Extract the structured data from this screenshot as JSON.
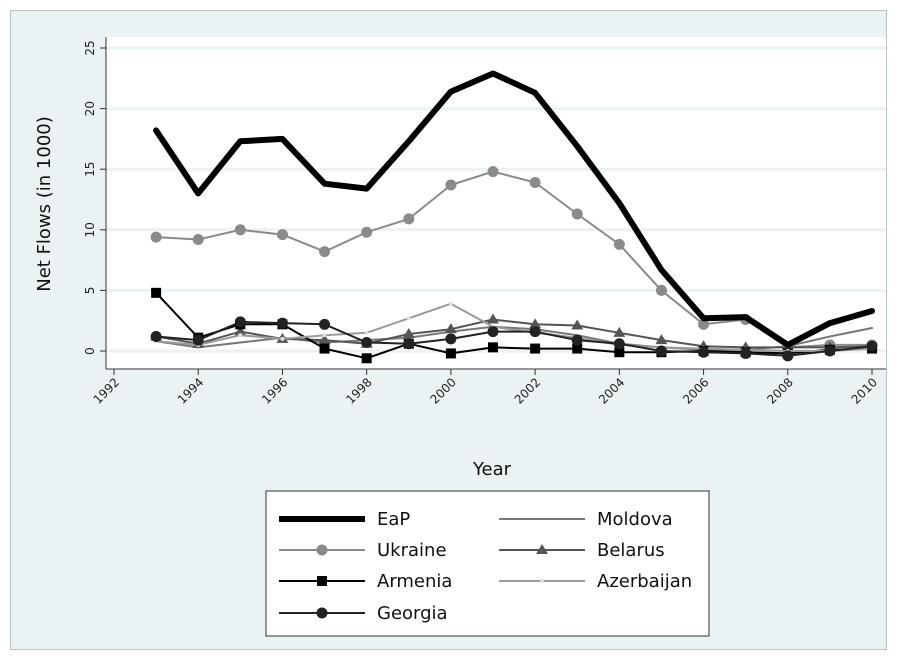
{
  "chart_data": {
    "type": "line",
    "title": "",
    "xlabel": "Year",
    "ylabel": "Net Flows (in 1000)",
    "xlim": [
      1992,
      2010
    ],
    "ylim": [
      0,
      25
    ],
    "x_ticks": [
      1992,
      1994,
      1996,
      1998,
      2000,
      2002,
      2004,
      2006,
      2008,
      2010
    ],
    "y_ticks": [
      0,
      5,
      10,
      15,
      20,
      25
    ],
    "grid": "horizontal",
    "legend_position": "bottom",
    "x": [
      1993,
      1994,
      1995,
      1996,
      1997,
      1998,
      1999,
      2000,
      2001,
      2002,
      2003,
      2004,
      2005,
      2006,
      2007,
      2008,
      2009,
      2010
    ],
    "series": [
      {
        "name": "EaP",
        "color": "#000000",
        "marker": "none",
        "width": 6,
        "values": [
          18.2,
          13.0,
          17.3,
          17.5,
          13.8,
          13.4,
          17.3,
          21.4,
          22.9,
          21.3,
          16.9,
          12.2,
          6.7,
          2.7,
          2.8,
          0.5,
          2.3,
          3.3
        ]
      },
      {
        "name": "Moldova",
        "color": "#777777",
        "marker": "none",
        "width": 2,
        "values": [
          0.8,
          0.3,
          0.7,
          1.1,
          0.7,
          0.9,
          1.1,
          1.6,
          2.0,
          1.8,
          1.3,
          0.6,
          0.3,
          0.1,
          0.1,
          0.4,
          1.2,
          1.9
        ]
      },
      {
        "name": "Ukraine",
        "color": "#8a8a8a",
        "marker": "circle",
        "width": 2,
        "values": [
          9.4,
          9.2,
          10.0,
          9.6,
          8.2,
          9.8,
          10.9,
          13.7,
          14.8,
          13.9,
          11.3,
          8.8,
          5.0,
          2.2,
          2.6,
          0.3,
          0.5,
          0.5
        ]
      },
      {
        "name": "Belarus",
        "color": "#555555",
        "marker": "triangle",
        "width": 2,
        "values": [
          1.2,
          0.6,
          1.6,
          1.0,
          0.9,
          0.6,
          1.4,
          1.8,
          2.6,
          2.2,
          2.1,
          1.5,
          0.9,
          0.4,
          0.3,
          0.3,
          0.3,
          0.4
        ]
      },
      {
        "name": "Armenia",
        "color": "#000000",
        "marker": "square",
        "width": 2,
        "values": [
          4.8,
          1.1,
          2.2,
          2.2,
          0.2,
          -0.6,
          0.6,
          -0.2,
          0.3,
          0.2,
          0.2,
          -0.1,
          -0.1,
          0.0,
          -0.1,
          -0.2,
          0.1,
          0.2
        ]
      },
      {
        "name": "Azerbaijan",
        "color": "#999999",
        "marker": "dot",
        "width": 2,
        "values": [
          0.8,
          0.5,
          1.3,
          1.0,
          1.3,
          1.5,
          2.7,
          3.9,
          2.0,
          1.5,
          1.1,
          0.5,
          0.3,
          0.2,
          0.1,
          0.0,
          0.0,
          0.2
        ]
      },
      {
        "name": "Georgia",
        "color": "#222222",
        "marker": "circle",
        "width": 2,
        "values": [
          1.2,
          0.9,
          2.4,
          2.3,
          2.2,
          0.7,
          0.6,
          1.0,
          1.6,
          1.6,
          0.9,
          0.6,
          0.0,
          -0.1,
          -0.2,
          -0.4,
          0.0,
          0.4
        ]
      }
    ]
  }
}
